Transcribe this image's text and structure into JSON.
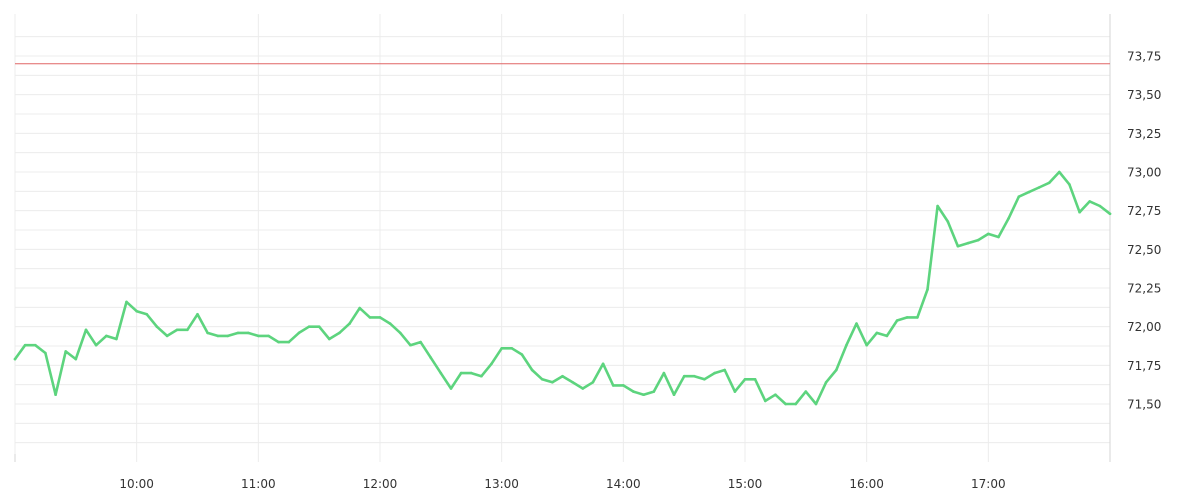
{
  "chart_data": {
    "type": "line",
    "x_tick_labels": [
      "10:00",
      "11:00",
      "12:00",
      "13:00",
      "14:00",
      "15:00",
      "16:00",
      "17:00"
    ],
    "y_tick_labels": [
      "71,50",
      "71,75",
      "72,00",
      "72,25",
      "72,50",
      "72,75",
      "73,00",
      "73,25",
      "73,50",
      "73,75"
    ],
    "y_ticks": [
      71.5,
      71.75,
      72.0,
      72.25,
      72.5,
      72.75,
      73.0,
      73.25,
      73.5,
      73.75
    ],
    "ylim": [
      71.25,
      73.95
    ],
    "xlim": [
      "09:00",
      "18:00"
    ],
    "grid": true,
    "reference_line": {
      "value": 73.7,
      "color": "#e06666"
    },
    "series": [
      {
        "color": "#5dd47e",
        "x": [
          "09:00",
          "09:05",
          "09:10",
          "09:15",
          "09:20",
          "09:25",
          "09:30",
          "09:35",
          "09:40",
          "09:45",
          "09:50",
          "09:55",
          "10:00",
          "10:05",
          "10:10",
          "10:15",
          "10:20",
          "10:25",
          "10:30",
          "10:35",
          "10:40",
          "10:45",
          "10:50",
          "10:55",
          "11:00",
          "11:05",
          "11:10",
          "11:15",
          "11:20",
          "11:25",
          "11:30",
          "11:35",
          "11:40",
          "11:45",
          "11:50",
          "11:55",
          "12:00",
          "12:05",
          "12:10",
          "12:15",
          "12:20",
          "12:25",
          "12:30",
          "12:35",
          "12:40",
          "12:45",
          "12:50",
          "12:55",
          "13:00",
          "13:05",
          "13:10",
          "13:15",
          "13:20",
          "13:25",
          "13:30",
          "13:35",
          "13:40",
          "13:45",
          "13:50",
          "13:55",
          "14:00",
          "14:05",
          "14:10",
          "14:15",
          "14:20",
          "14:25",
          "14:30",
          "14:35",
          "14:40",
          "14:45",
          "14:50",
          "14:55",
          "15:00",
          "15:05",
          "15:10",
          "15:15",
          "15:20",
          "15:25",
          "15:30",
          "15:35",
          "15:40",
          "15:45",
          "15:50",
          "15:55",
          "16:00",
          "16:05",
          "16:10",
          "16:15",
          "16:20",
          "16:25",
          "16:30",
          "16:35",
          "16:40",
          "16:45",
          "16:50",
          "16:55",
          "17:00",
          "17:05",
          "17:10",
          "17:15",
          "17:20",
          "17:25",
          "17:30",
          "17:35",
          "17:40",
          "17:45",
          "17:50",
          "17:55",
          "18:00"
        ],
        "values": [
          71.79,
          71.88,
          71.88,
          71.83,
          71.56,
          71.84,
          71.79,
          71.98,
          71.88,
          71.94,
          71.92,
          72.16,
          72.1,
          72.08,
          72.0,
          71.94,
          71.98,
          71.98,
          72.08,
          71.96,
          71.94,
          71.94,
          71.96,
          71.96,
          71.94,
          71.94,
          71.9,
          71.9,
          71.96,
          72.0,
          72.0,
          71.92,
          71.96,
          72.02,
          72.12,
          72.06,
          72.06,
          72.02,
          71.96,
          71.88,
          71.9,
          71.8,
          71.7,
          71.6,
          71.7,
          71.7,
          71.68,
          71.76,
          71.86,
          71.86,
          71.82,
          71.72,
          71.66,
          71.64,
          71.68,
          71.64,
          71.6,
          71.64,
          71.76,
          71.62,
          71.62,
          71.58,
          71.56,
          71.58,
          71.7,
          71.56,
          71.68,
          71.68,
          71.66,
          71.7,
          71.72,
          71.58,
          71.66,
          71.66,
          71.52,
          71.56,
          71.5,
          71.5,
          71.58,
          71.5,
          71.64,
          71.72,
          71.88,
          72.02,
          71.88,
          71.96,
          71.94,
          72.04,
          72.06,
          72.06,
          72.24,
          72.78,
          72.68,
          72.52,
          72.54,
          72.56,
          72.6,
          72.58,
          72.7,
          72.84,
          72.87,
          72.9,
          72.93,
          73.0,
          72.92,
          72.74,
          72.81,
          72.78,
          72.73
        ]
      }
    ]
  }
}
